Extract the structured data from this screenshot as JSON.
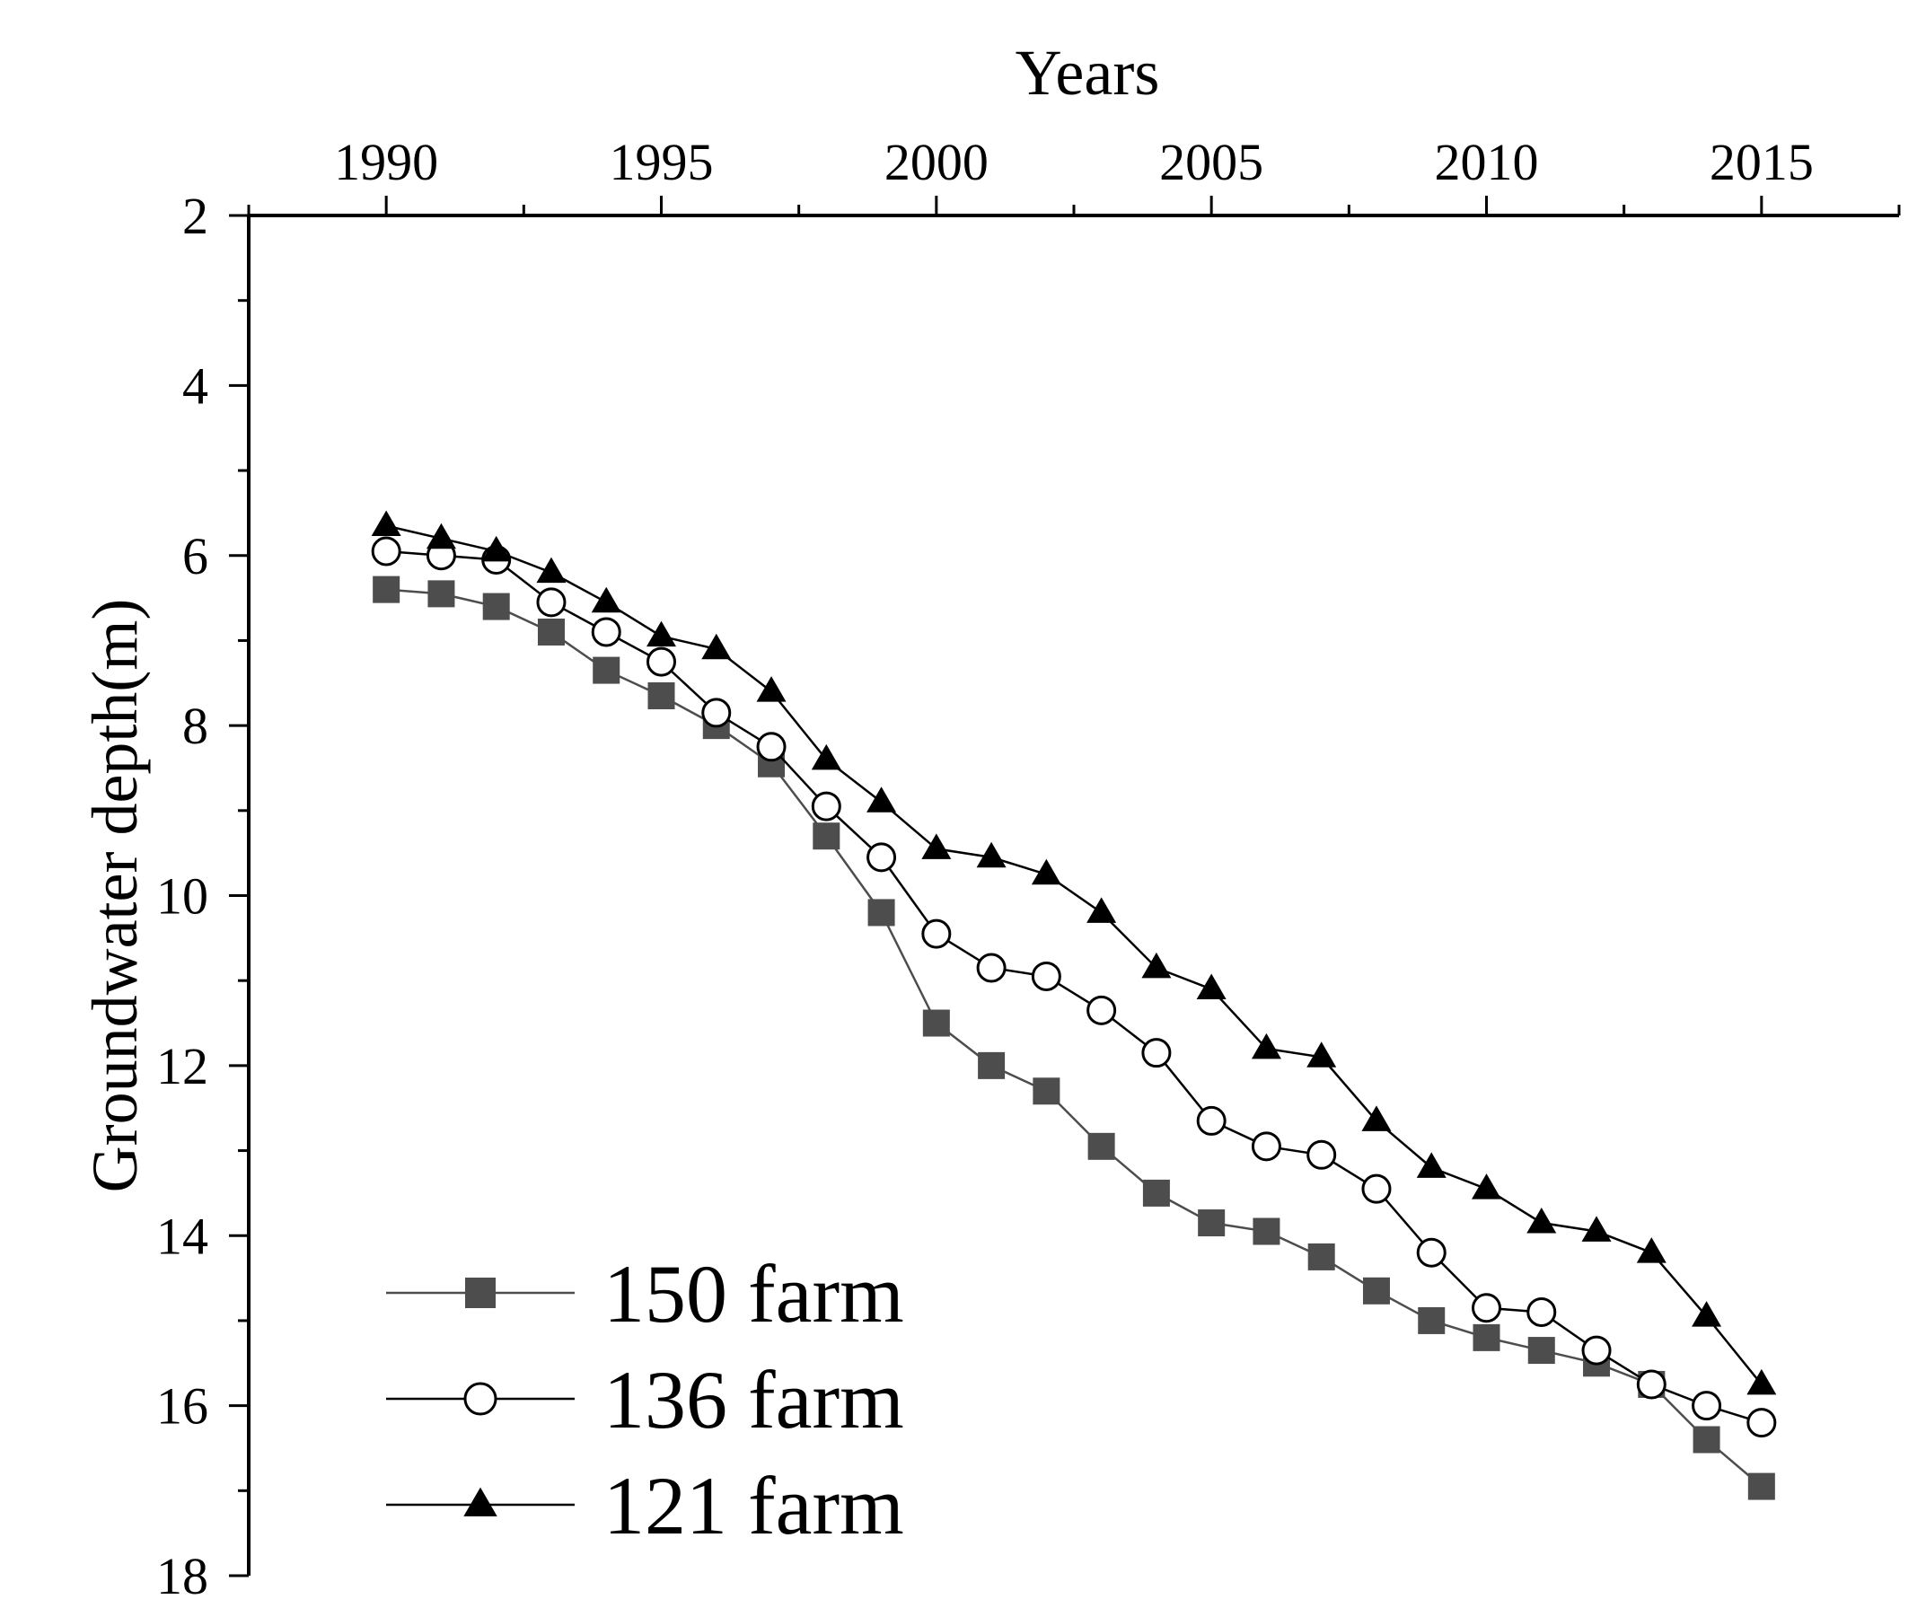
{
  "chart_data": {
    "type": "line",
    "title": "",
    "xlabel": "Years",
    "ylabel": "Groundwater depth(m)",
    "xlim": [
      1987.5,
      2017.5
    ],
    "ylim": [
      2,
      18
    ],
    "y_inverted": true,
    "x_axis_position": "top",
    "xticks": [
      1990,
      1995,
      2000,
      2005,
      2010,
      2015
    ],
    "yticks": [
      2,
      4,
      6,
      8,
      10,
      12,
      14,
      16,
      18
    ],
    "grid": false,
    "legend_position": "bottom-left",
    "x": [
      1990,
      1991,
      1992,
      1993,
      1994,
      1995,
      1996,
      1997,
      1998,
      1999,
      2000,
      2001,
      2002,
      2003,
      2004,
      2005,
      2006,
      2007,
      2008,
      2009,
      2010,
      2011,
      2012,
      2013,
      2014,
      2015
    ],
    "series": [
      {
        "name": "150 farm",
        "marker": "square",
        "color": "#4d4d4d",
        "values": [
          6.4,
          6.45,
          6.6,
          6.9,
          7.35,
          7.65,
          8.0,
          8.45,
          9.3,
          10.2,
          11.5,
          12.0,
          12.3,
          12.95,
          13.5,
          13.85,
          13.95,
          14.25,
          14.65,
          15.0,
          15.2,
          15.35,
          15.5,
          15.75,
          16.4,
          16.95
        ]
      },
      {
        "name": "136 farm",
        "marker": "circle",
        "color": "#000000",
        "values": [
          5.95,
          6.0,
          6.05,
          6.55,
          6.9,
          7.25,
          7.85,
          8.25,
          8.95,
          9.55,
          10.45,
          10.85,
          10.95,
          11.35,
          11.85,
          12.65,
          12.95,
          13.05,
          13.45,
          14.2,
          14.85,
          14.9,
          15.35,
          15.75,
          16.0,
          16.2
        ]
      },
      {
        "name": "121 farm",
        "marker": "triangle",
        "color": "#000000",
        "values": [
          5.65,
          5.8,
          5.95,
          6.2,
          6.55,
          6.95,
          7.1,
          7.6,
          8.4,
          8.9,
          9.45,
          9.55,
          9.75,
          10.2,
          10.85,
          11.1,
          11.8,
          11.9,
          12.65,
          13.2,
          13.45,
          13.85,
          13.95,
          14.2,
          14.95,
          15.75
        ]
      }
    ]
  }
}
